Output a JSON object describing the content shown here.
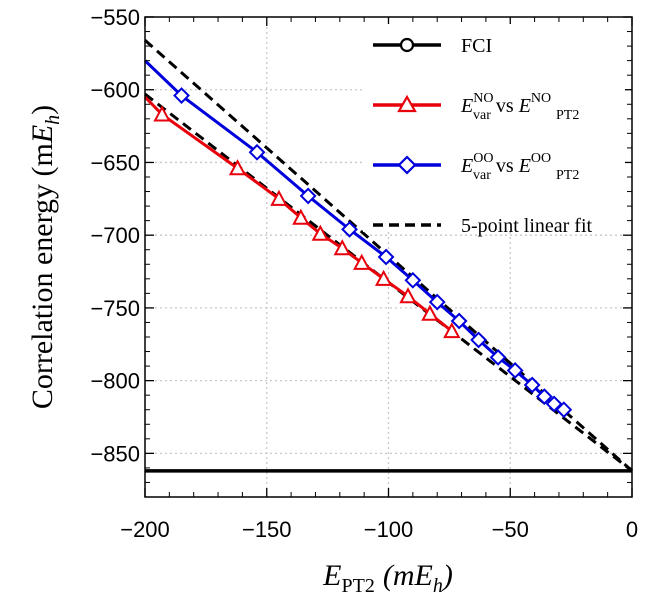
{
  "chart_data": {
    "type": "line",
    "ylabel_main": "Correlation energy (m",
    "ylabel_var": "E",
    "ylabel_sub": "h",
    "ylabel_close": ")",
    "xlabel_var": "E",
    "xlabel_sub": "PT2",
    "xlabel_open": "(m",
    "xlabel_var2": "E",
    "xlabel_sub2": "h",
    "xlabel_close": ")",
    "xlim": [
      -200,
      0
    ],
    "ylim": [
      -880,
      -550
    ],
    "x_ticks": [
      -200,
      -150,
      -100,
      -50,
      0
    ],
    "x_tick_labels": [
      "−200",
      "−150",
      "−100",
      "−50",
      "0"
    ],
    "y_ticks": [
      -550,
      -600,
      -650,
      -700,
      -750,
      -800,
      -850
    ],
    "y_tick_labels": [
      "−550",
      "−600",
      "−650",
      "−700",
      "−750",
      "−800",
      "−850"
    ],
    "grid": true,
    "legend_position": "top-right",
    "series": [
      {
        "name": "FCI",
        "kind": "hline",
        "color": "#000000",
        "y": -862
      },
      {
        "name_main": "E",
        "name_sub1": "var",
        "name_sup1": "NO",
        "name_mid": " vs ",
        "name_main2": "E",
        "name_sub2": "PT2",
        "name_sup2": "NO",
        "kind": "line-markers",
        "marker": "triangle",
        "color": "#e8000b",
        "x": [
          -200,
          -193,
          -162,
          -145,
          -136,
          -128,
          -119,
          -111,
          -102,
          -92,
          -83,
          -74
        ],
        "y": [
          -605,
          -617,
          -654,
          -675,
          -688,
          -699,
          -709,
          -719,
          -730,
          -742,
          -754,
          -766
        ]
      },
      {
        "name_main": "E",
        "name_sub1": "var",
        "name_sup1": "OO",
        "name_mid": " vs ",
        "name_main2": "E",
        "name_sub2": "PT2",
        "name_sup2": "OO",
        "kind": "line-markers",
        "marker": "diamond",
        "color": "#0000dd",
        "x": [
          -200,
          -185,
          -154,
          -133,
          -116,
          -101,
          -90,
          -80,
          -71,
          -63,
          -55,
          -48,
          -41,
          -36,
          -32,
          -28
        ],
        "y": [
          -580,
          -604,
          -643,
          -673,
          -696,
          -715,
          -731,
          -746,
          -759,
          -772,
          -784,
          -793,
          -803,
          -811,
          -816,
          -820
        ]
      },
      {
        "name": "5-point linear fit",
        "kind": "dashed",
        "color": "#000000",
        "lines": [
          {
            "x": [
              -200,
              0
            ],
            "y": [
              -566,
              -862
            ]
          },
          {
            "x": [
              -200,
              0
            ],
            "y": [
              -603,
              -862
            ]
          }
        ]
      }
    ]
  }
}
